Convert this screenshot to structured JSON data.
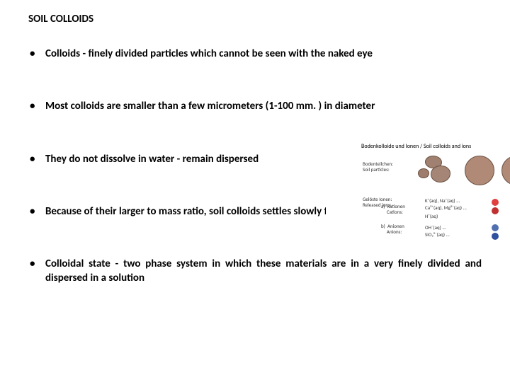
{
  "title": "SOIL COLLOIDS",
  "bullets": [
    "Colloids - finely divided particles which cannot be seen with the naked eye",
    "Most colloids are smaller than a few micrometers (1-100 mm. ) in diameter",
    "They do not dissolve in water - remain dispersed",
    "Because of their larger to mass ratio, soil colloids settles slowly from suspension",
    "Colloidal state - two phase system in which these materials are in a very finely divided and dispersed in a solution"
  ],
  "figure": {
    "title": "Bodenkolloide und Ionen / Soil colloids and ions",
    "particles_label": "Bodenteilchen:\nSoil particles:",
    "released_label": "Gelöste Ionen:\nReleased ions:",
    "row_a_label": "a)  Kationen\n     Cations:",
    "row_b_label": "b)  Anionen\n     Anions:",
    "ions_a1": "K⁺(aq),   Na⁺(aq) ...",
    "ions_a2": "Ca²⁺(aq), Mg²⁺(aq) ...",
    "ions_a3": "H⁺(aq)",
    "ions_b1": "OH⁻(aq) ...",
    "ions_b2": "SiO₃²⁻(aq) ...",
    "colors": {
      "cation1": "#e04040",
      "cation2": "#c03030",
      "anion1": "#5070b0",
      "anion2": "#3050a0",
      "particle_fill": "#b08a76",
      "particle_border": "#6b5040"
    }
  }
}
